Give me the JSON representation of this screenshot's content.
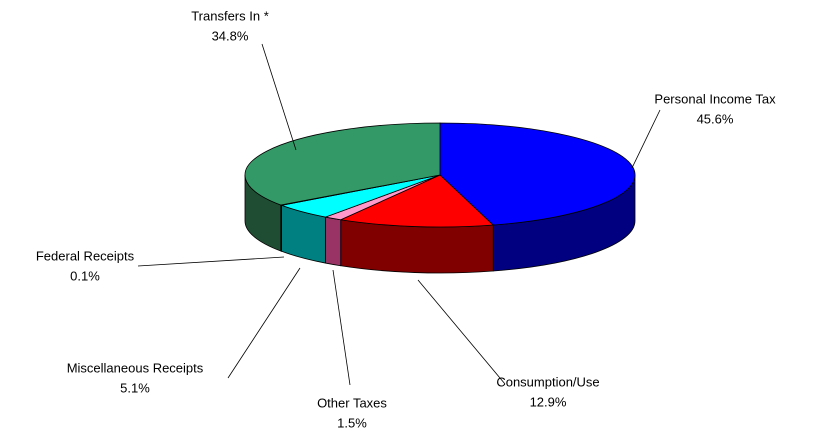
{
  "chart_data": {
    "type": "pie3d",
    "categories": [
      "Personal Income Tax",
      "Consumption/Use",
      "Other Taxes",
      "Miscellaneous Receipts",
      "Federal Receipts",
      "Transfers In *"
    ],
    "values": [
      45.6,
      12.9,
      1.5,
      5.1,
      0.1,
      34.8
    ],
    "value_labels": [
      "45.6%",
      "12.9%",
      "1.5%",
      "5.1%",
      "0.1%",
      "34.8%"
    ],
    "colors": [
      "#0000ff",
      "#ff0000",
      "#ff99cc",
      "#00ffff",
      "#800080",
      "#339966"
    ],
    "side_colors": [
      "#000080",
      "#800000",
      "#993366",
      "#008080",
      "#400040",
      "#1f4d33"
    ]
  }
}
